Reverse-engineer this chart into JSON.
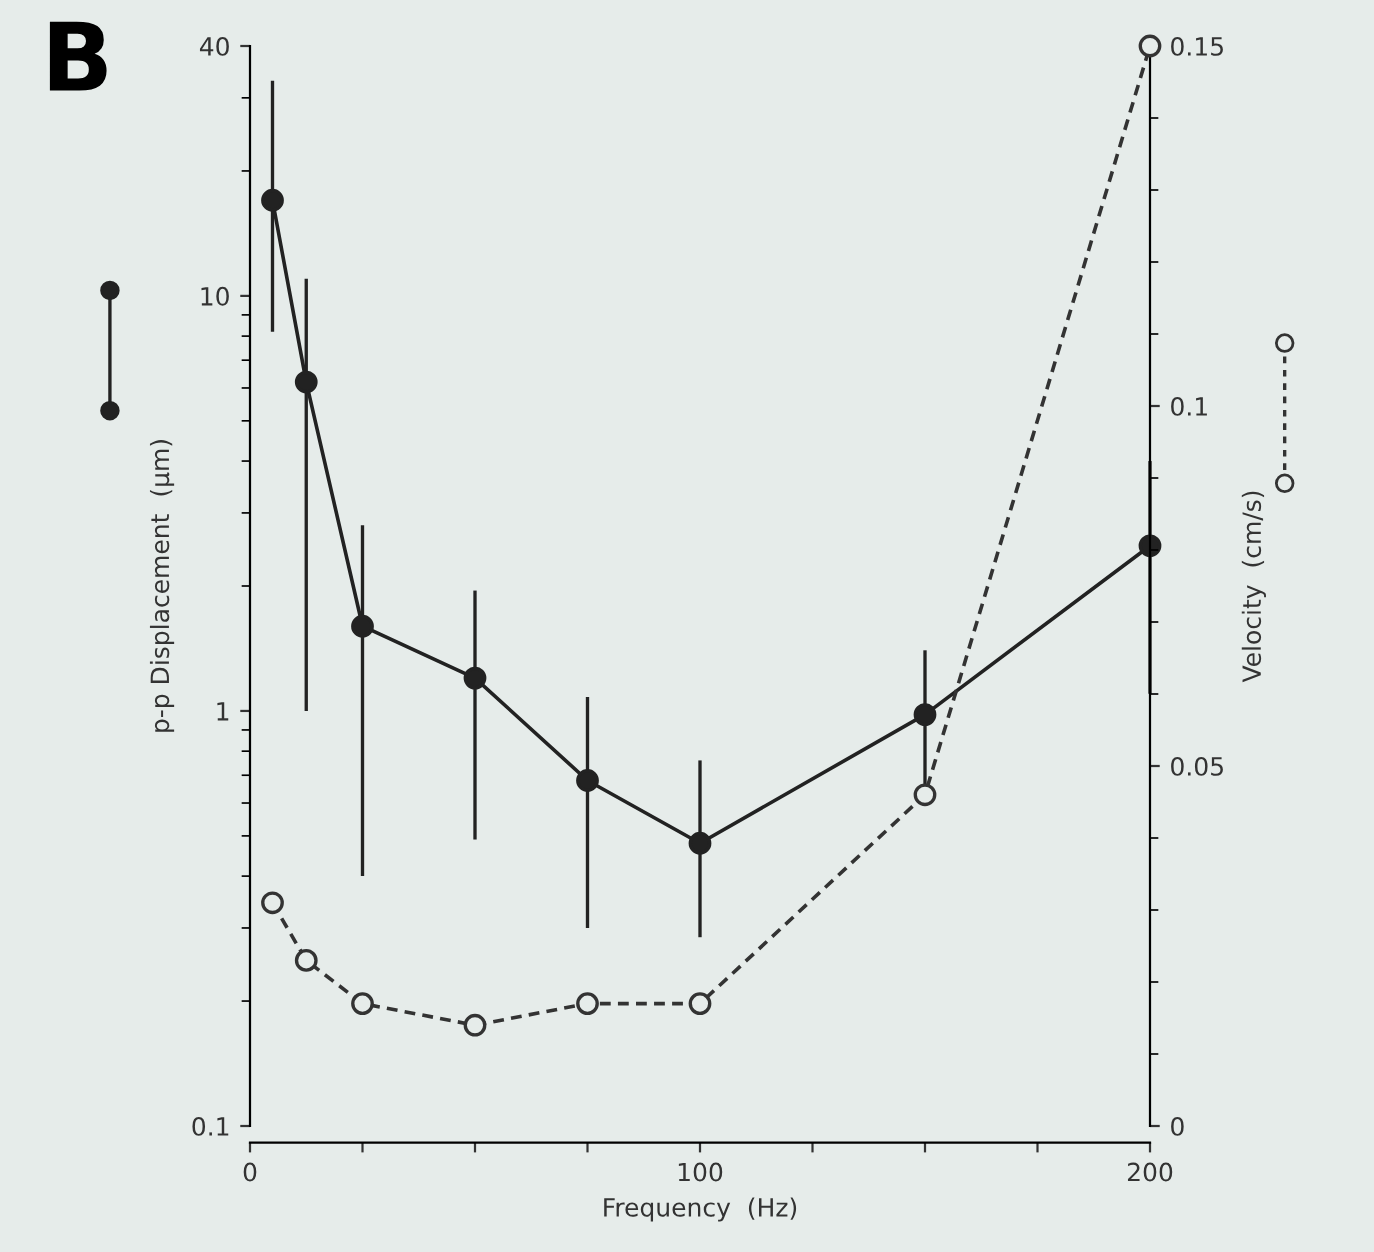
{
  "chart_data": {
    "type": "line",
    "title": "B",
    "xlabel": "Frequency  (Hz)",
    "ylabel": "p-p Displacement  (μm)",
    "y2label": "Velocity  (cm/s)",
    "xlim": [
      0,
      200
    ],
    "xticks": [
      0,
      {
        "value": 25,
        "label": null
      },
      {
        "value": 50,
        "label": null
      },
      {
        "value": 75,
        "label": null
      },
      100,
      {
        "value": 125,
        "label": null
      },
      {
        "value": 150,
        "label": null
      },
      {
        "value": 175,
        "label": null
      },
      200
    ],
    "log": "y",
    "ylim": [
      0.1,
      40
    ],
    "yticks": [
      0.1,
      1,
      10,
      40
    ],
    "y2lim": [
      0,
      0.15
    ],
    "y2ticks": [
      0,
      0.05,
      0.1,
      0.15
    ],
    "grid": false,
    "legend": false,
    "series": [
      {
        "color": "#222222",
        "marker": "circle",
        "line_style": "solid",
        "x": [
          5,
          12.5,
          25,
          50,
          75,
          100,
          150,
          200
        ],
        "values": [
          17,
          6.2,
          1.6,
          1.2,
          0.68,
          0.48,
          0.98,
          2.5
        ],
        "errors": [
          [
            8.2,
            33
          ],
          [
            1.0,
            11
          ],
          [
            0.4,
            2.8
          ],
          [
            0.49,
            1.95
          ],
          [
            0.3,
            1.08
          ],
          [
            0.285,
            0.76
          ],
          [
            0.6,
            1.4
          ],
          [
            1.1,
            4.0
          ]
        ]
      },
      {
        "color": "#333333",
        "marker": "circle",
        "line_style": "dashed",
        "axis": "y2",
        "x": [
          5,
          12.5,
          25,
          50,
          75,
          100,
          150,
          200
        ],
        "values": [
          0.031,
          0.023,
          0.017,
          0.014,
          0.017,
          0.017,
          0.046,
          0.15
        ]
      }
    ]
  }
}
